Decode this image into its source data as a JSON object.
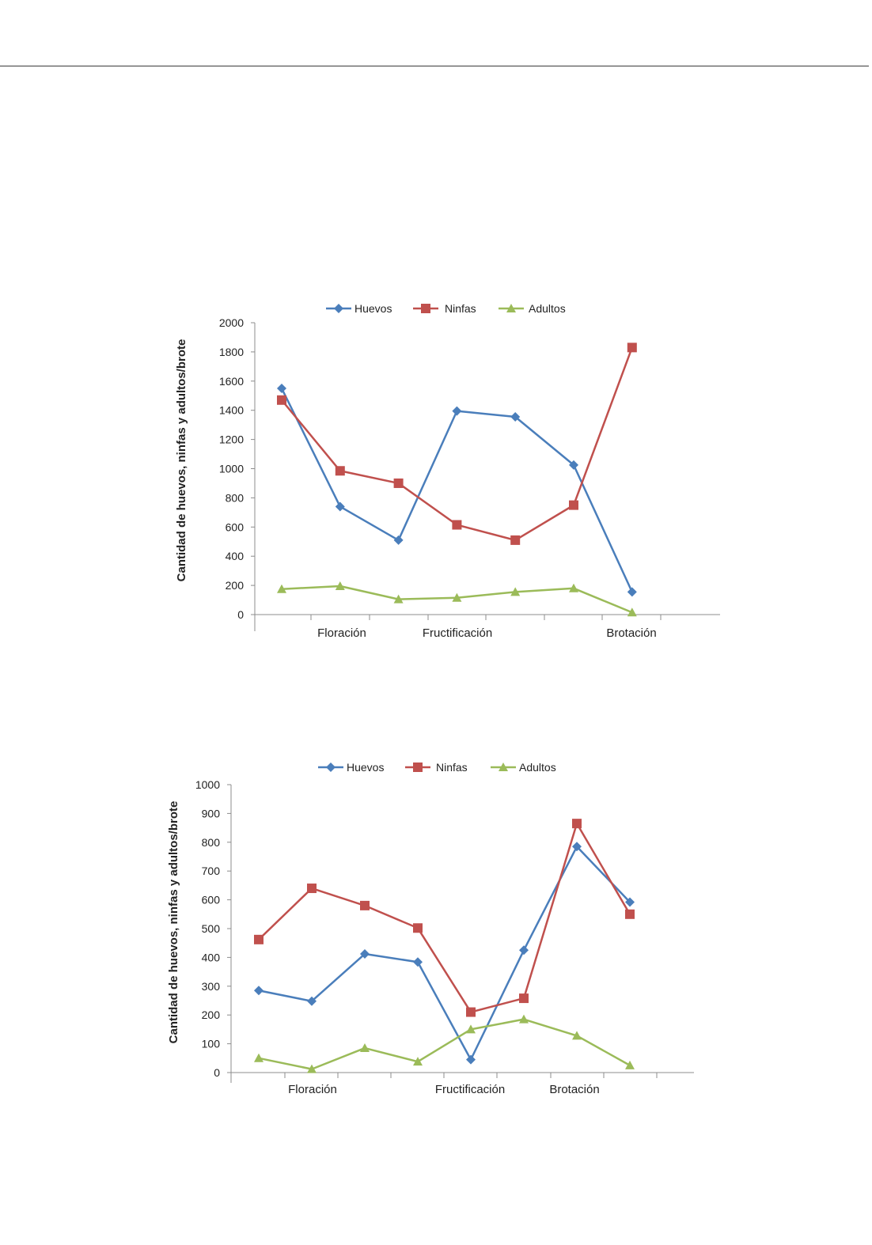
{
  "chart_data": [
    {
      "type": "line",
      "ylabel": "Cantidad de huevos, ninfas y adultos/brote",
      "ylim": [
        0,
        2000
      ],
      "yticks": [
        "0",
        "200",
        "400",
        "600",
        "800",
        "1000",
        "1200",
        "1400",
        "1600",
        "1800",
        "2000"
      ],
      "num_points": 7,
      "category_labels": [
        {
          "label": "Floración",
          "after_point": 1
        },
        {
          "label": "Fructificación",
          "after_point": 3
        },
        {
          "label": "Brotación",
          "after_point": 6
        }
      ],
      "legend": [
        "Huevos",
        "Ninfas",
        "Adultos"
      ],
      "series": [
        {
          "name": "Huevos",
          "color": "#4a7ebb",
          "marker": "diamond",
          "values": [
            1550,
            740,
            510,
            1395,
            1355,
            1025,
            155
          ]
        },
        {
          "name": "Ninfas",
          "color": "#c0504d",
          "marker": "square",
          "values": [
            1470,
            985,
            900,
            615,
            510,
            750,
            1830
          ]
        },
        {
          "name": "Adultos",
          "color": "#9bbb59",
          "marker": "triangle",
          "values": [
            175,
            195,
            105,
            115,
            155,
            180,
            15
          ]
        }
      ]
    },
    {
      "type": "line",
      "ylabel": "Cantidad de huevos, ninfas y adultos/brote",
      "ylim": [
        0,
        1000
      ],
      "yticks": [
        "0",
        "100",
        "200",
        "300",
        "400",
        "500",
        "600",
        "700",
        "800",
        "900",
        "1000"
      ],
      "num_points": 8,
      "category_labels": [
        {
          "label": "Floración",
          "after_point": 1
        },
        {
          "label": "Fructificación",
          "after_point": 4
        },
        {
          "label": "Brotación",
          "after_point": 6
        }
      ],
      "legend": [
        "Huevos",
        "Ninfas",
        "Adultos"
      ],
      "series": [
        {
          "name": "Huevos",
          "color": "#4a7ebb",
          "marker": "diamond",
          "values": [
            285,
            248,
            412,
            384,
            45,
            425,
            785,
            592
          ]
        },
        {
          "name": "Ninfas",
          "color": "#c0504d",
          "marker": "square",
          "values": [
            462,
            640,
            580,
            502,
            210,
            258,
            865,
            550
          ]
        },
        {
          "name": "Adultos",
          "color": "#9bbb59",
          "marker": "triangle",
          "values": [
            50,
            12,
            85,
            38,
            150,
            185,
            128,
            25
          ]
        }
      ]
    }
  ]
}
